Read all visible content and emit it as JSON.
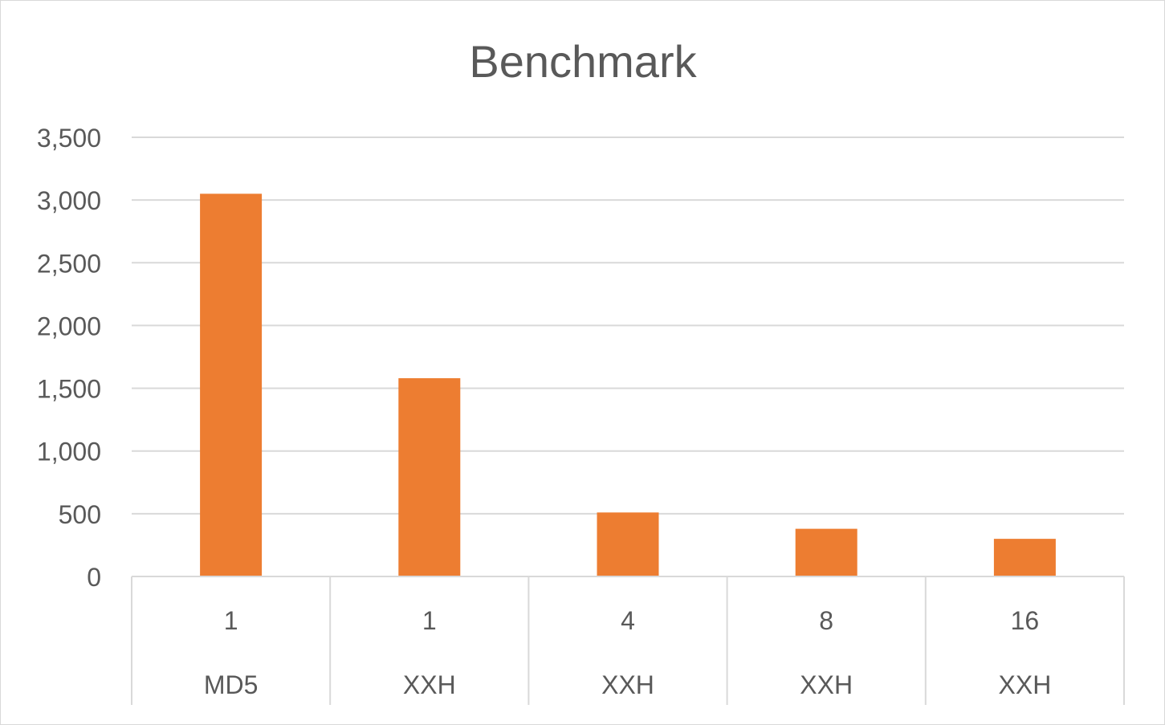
{
  "chart_data": {
    "type": "bar",
    "title": "Benchmark",
    "xlabel": "",
    "ylabel": "",
    "categories": [
      {
        "level1": "1",
        "level2": "MD5"
      },
      {
        "level1": "1",
        "level2": "XXH"
      },
      {
        "level1": "4",
        "level2": "XXH"
      },
      {
        "level1": "8",
        "level2": "XXH"
      },
      {
        "level1": "16",
        "level2": "XXH"
      }
    ],
    "values": [
      3050,
      1580,
      510,
      380,
      300
    ],
    "ylim": [
      0,
      3500
    ],
    "yticks": [
      "0",
      "500",
      "1,000",
      "1,500",
      "2,000",
      "2,500",
      "3,000",
      "3,500"
    ],
    "grid": true,
    "legend": "none",
    "colors": {
      "bar": "#ED7D31",
      "grid": "#D9D9D9",
      "text": "#595959"
    }
  }
}
